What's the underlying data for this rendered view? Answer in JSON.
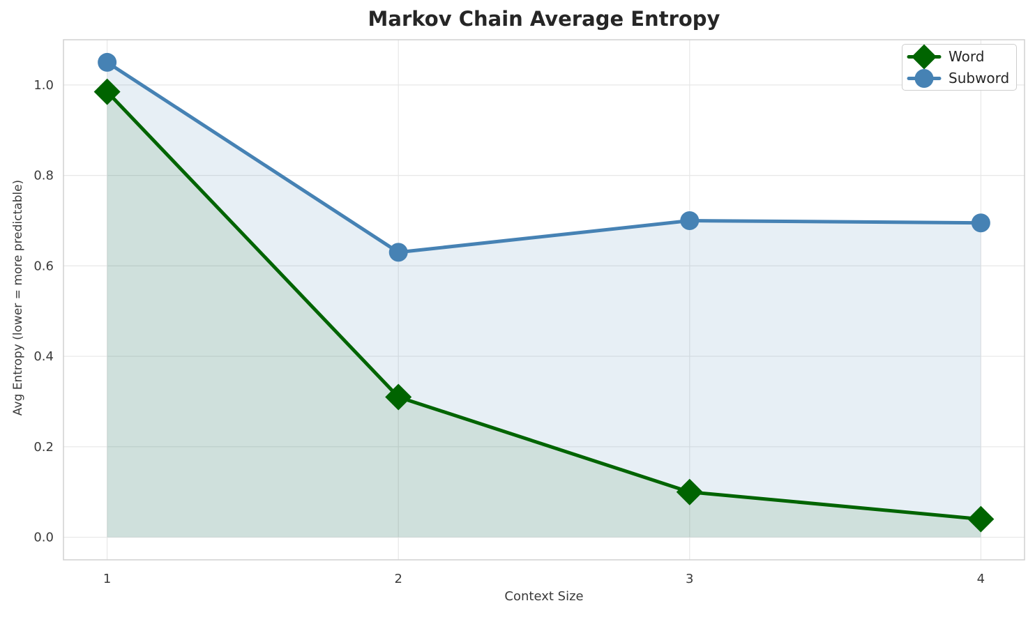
{
  "chart_data": {
    "type": "line",
    "title": "Markov Chain Average Entropy",
    "xlabel": "Context Size",
    "ylabel": "Avg Entropy (lower = more predictable)",
    "x": [
      1,
      2,
      3,
      4
    ],
    "series": [
      {
        "name": "Word",
        "color": "#006400",
        "marker": "diamond",
        "fill_to_zero": true,
        "fill_color": "rgba(0,100,0,0.10)",
        "values": [
          0.985,
          0.31,
          0.1,
          0.04
        ]
      },
      {
        "name": "Subword",
        "color": "#4682b4",
        "marker": "circle",
        "fill_to_zero": true,
        "fill_color": "rgba(70,130,180,0.13)",
        "values": [
          1.05,
          0.63,
          0.7,
          0.695
        ]
      }
    ],
    "xlim": [
      0.85,
      4.15
    ],
    "ylim": [
      -0.05,
      1.1
    ],
    "xticks": {
      "values": [
        1,
        2,
        3,
        4
      ],
      "labels": [
        "1",
        "2",
        "3",
        "4"
      ]
    },
    "yticks": {
      "values": [
        0.0,
        0.2,
        0.4,
        0.6,
        0.8,
        1.0
      ],
      "labels": [
        "0.0",
        "0.2",
        "0.4",
        "0.6",
        "0.8",
        "1.0"
      ]
    },
    "grid": true,
    "legend": {
      "position": "upper right",
      "entries": [
        "Word",
        "Subword"
      ]
    },
    "colors": {
      "grid": "#e7e7e7",
      "spine": "#d0d0d0",
      "title_text": "#262626",
      "tick_text": "#3a3a3a"
    },
    "line_width": 5
  }
}
